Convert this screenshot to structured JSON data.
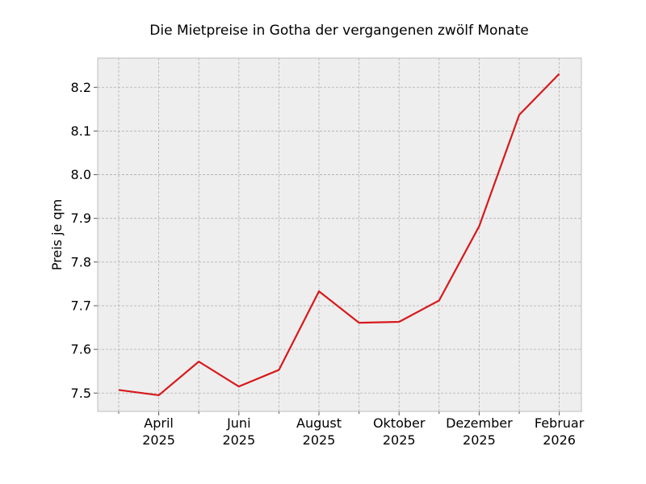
{
  "chart_data": {
    "type": "line",
    "title": "Die Mietpreise in Gotha der vergangenen zwölf Monate",
    "xlabel": "",
    "ylabel": "Preis je qm",
    "x": [
      "2025-03",
      "2025-04",
      "2025-05",
      "2025-06",
      "2025-07",
      "2025-08",
      "2025-09",
      "2025-10",
      "2025-11",
      "2025-12",
      "2026-01",
      "2026-02"
    ],
    "series": [
      {
        "values": [
          7.507,
          7.495,
          7.572,
          7.515,
          7.553,
          7.733,
          7.661,
          7.663,
          7.712,
          7.882,
          8.137,
          8.231
        ]
      }
    ],
    "ylim": [
      7.458,
      8.267
    ],
    "yticks": [
      7.5,
      7.6,
      7.7,
      7.8,
      7.9,
      8.0,
      8.1,
      8.2
    ],
    "ytick_labels": [
      "7.5",
      "7.6",
      "7.7",
      "7.8",
      "7.9",
      "8.0",
      "8.1",
      "8.2"
    ],
    "xticks_major": [
      {
        "x": "2025-04",
        "month": "April",
        "year": "2025"
      },
      {
        "x": "2025-06",
        "month": "Juni",
        "year": "2025"
      },
      {
        "x": "2025-08",
        "month": "August",
        "year": "2025"
      },
      {
        "x": "2025-10",
        "month": "Oktober",
        "year": "2025"
      },
      {
        "x": "2025-12",
        "month": "Dezember",
        "year": "2025"
      },
      {
        "x": "2026-02",
        "month": "Februar",
        "year": "2026"
      }
    ],
    "xticks_minor": [
      "2025-03",
      "2025-05",
      "2025-07",
      "2025-09",
      "2025-11",
      "2026-01"
    ],
    "grid": true,
    "colors": {
      "line": "#d7191c",
      "background": "#eeeeee",
      "grid": "#b0b0b0",
      "frame": "#bcbcbc"
    }
  }
}
